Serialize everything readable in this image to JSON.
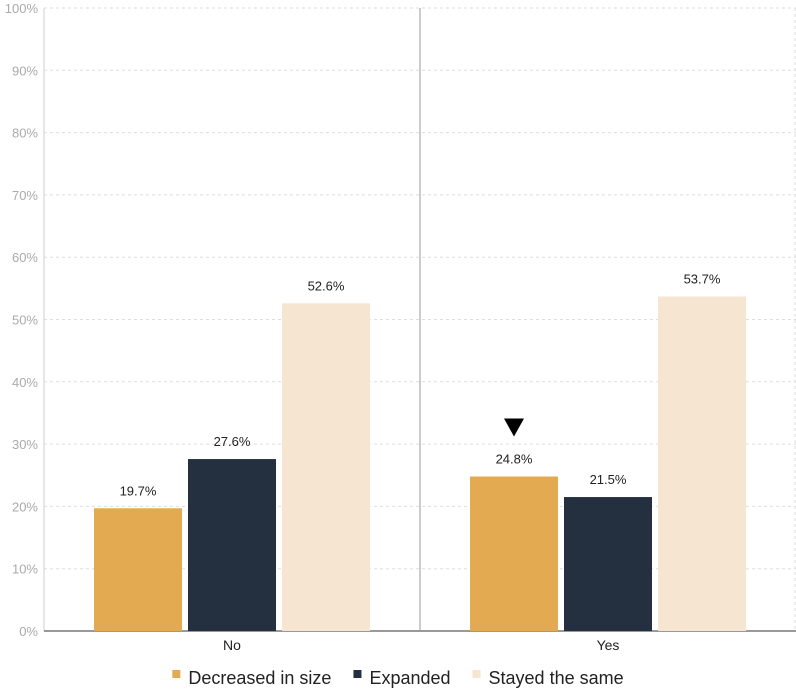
{
  "chart_data": {
    "type": "bar",
    "categories": [
      "No",
      "Yes"
    ],
    "series": [
      {
        "name": "Decreased in size",
        "color": "#E3AA52",
        "values": [
          19.7,
          24.8
        ]
      },
      {
        "name": "Expanded",
        "color": "#243040",
        "values": [
          27.6,
          21.5
        ]
      },
      {
        "name": "Stayed the same",
        "color": "#F6E6D1",
        "values": [
          52.6,
          53.7
        ]
      }
    ],
    "data_labels": [
      [
        "19.7%",
        "24.8%"
      ],
      [
        "27.6%",
        "21.5%"
      ],
      [
        "52.6%",
        "53.7%"
      ]
    ],
    "yticks": [
      "0%",
      "10%",
      "20%",
      "30%",
      "40%",
      "50%",
      "60%",
      "70%",
      "80%",
      "90%",
      "100%"
    ],
    "ylim": [
      0,
      100
    ],
    "grid": true,
    "legend_position": "bottom",
    "marker": {
      "shape": "down-triangle",
      "series": "Decreased in size",
      "category": "Yes"
    },
    "title": "",
    "xlabel": "",
    "ylabel": ""
  }
}
